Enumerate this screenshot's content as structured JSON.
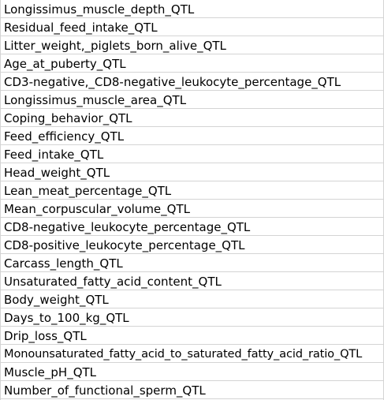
{
  "sheet": {
    "rows": [
      "Longissimus_muscle_depth_QTL",
      "Residual_feed_intake_QTL",
      "Litter_weight,_piglets_born_alive_QTL",
      "Age_at_puberty_QTL",
      "CD3-negative,_CD8-negative_leukocyte_percentage_QTL",
      "Longissimus_muscle_area_QTL",
      "Coping_behavior_QTL",
      "Feed_efficiency_QTL",
      "Feed_intake_QTL",
      "Head_weight_QTL",
      "Lean_meat_percentage_QTL",
      "Mean_corpuscular_volume_QTL",
      "CD8-negative_leukocyte_percentage_QTL",
      "CD8-positive_leukocyte_percentage_QTL",
      "Carcass_length_QTL",
      "Unsaturated_fatty_acid_content_QTL",
      "Body_weight_QTL",
      "Days_to_100_kg_QTL",
      "Drip_loss_QTL",
      "Monounsaturated_fatty_acid_to_saturated_fatty_acid_ratio_QTL",
      "Muscle_pH_QTL",
      "Number_of_functional_sperm_QTL"
    ]
  }
}
